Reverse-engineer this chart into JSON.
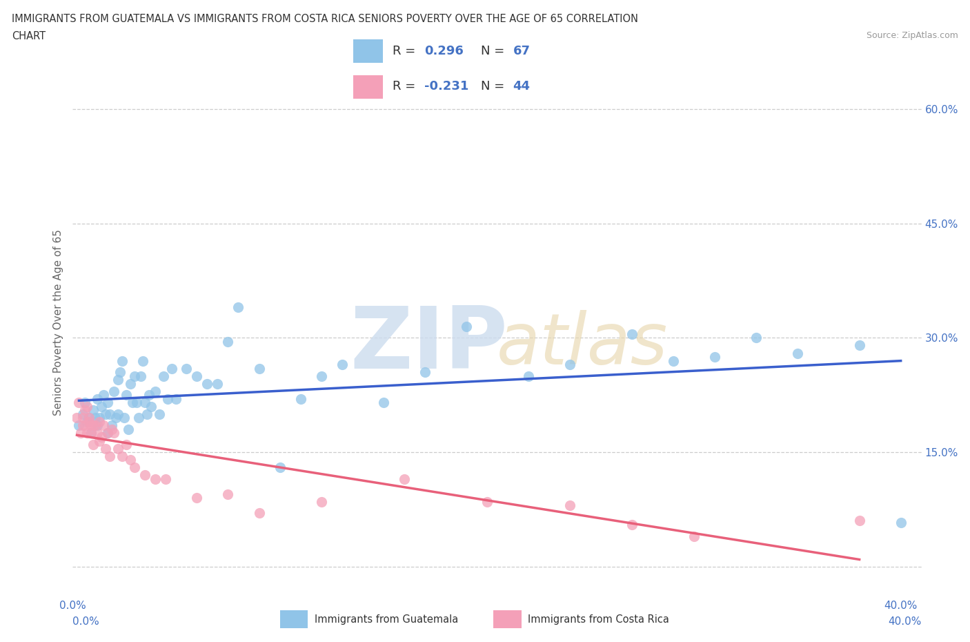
{
  "title_line1": "IMMIGRANTS FROM GUATEMALA VS IMMIGRANTS FROM COSTA RICA SENIORS POVERTY OVER THE AGE OF 65 CORRELATION",
  "title_line2": "CHART",
  "source": "Source: ZipAtlas.com",
  "ylabel": "Seniors Poverty Over the Age of 65",
  "xlim": [
    0.0,
    0.41
  ],
  "ylim": [
    -0.04,
    0.68
  ],
  "ytick_positions": [
    0.0,
    0.15,
    0.3,
    0.45,
    0.6
  ],
  "ytick_labels": [
    "",
    "15.0%",
    "30.0%",
    "45.0%",
    "60.0%"
  ],
  "xtick_positions": [
    0.0,
    0.05,
    0.1,
    0.15,
    0.2,
    0.25,
    0.3,
    0.35,
    0.4
  ],
  "xtick_labels": [
    "0.0%",
    "",
    "",
    "",
    "",
    "",
    "",
    "",
    "40.0%"
  ],
  "grid_color": "#cccccc",
  "bg_color": "#ffffff",
  "guatemala_dot_color": "#90c4e8",
  "costa_rica_dot_color": "#f4a0b8",
  "guatemala_line_color": "#3a5fcd",
  "costa_rica_line_color": "#e8607a",
  "R_guat": 0.296,
  "N_guat": 67,
  "R_costa": -0.231,
  "N_costa": 44,
  "guat_x": [
    0.003,
    0.005,
    0.006,
    0.007,
    0.008,
    0.009,
    0.01,
    0.011,
    0.012,
    0.012,
    0.013,
    0.014,
    0.015,
    0.016,
    0.017,
    0.017,
    0.018,
    0.019,
    0.02,
    0.021,
    0.022,
    0.022,
    0.023,
    0.024,
    0.025,
    0.026,
    0.027,
    0.028,
    0.029,
    0.03,
    0.031,
    0.032,
    0.033,
    0.034,
    0.035,
    0.036,
    0.037,
    0.038,
    0.04,
    0.042,
    0.044,
    0.046,
    0.048,
    0.05,
    0.055,
    0.06,
    0.065,
    0.07,
    0.075,
    0.08,
    0.09,
    0.1,
    0.11,
    0.12,
    0.13,
    0.15,
    0.17,
    0.19,
    0.22,
    0.24,
    0.27,
    0.29,
    0.31,
    0.33,
    0.35,
    0.38,
    0.4
  ],
  "guat_y": [
    0.185,
    0.2,
    0.215,
    0.19,
    0.195,
    0.175,
    0.205,
    0.195,
    0.185,
    0.22,
    0.195,
    0.21,
    0.225,
    0.2,
    0.175,
    0.215,
    0.2,
    0.185,
    0.23,
    0.195,
    0.2,
    0.245,
    0.255,
    0.27,
    0.195,
    0.225,
    0.18,
    0.24,
    0.215,
    0.25,
    0.215,
    0.195,
    0.25,
    0.27,
    0.215,
    0.2,
    0.225,
    0.21,
    0.23,
    0.2,
    0.25,
    0.22,
    0.26,
    0.22,
    0.26,
    0.25,
    0.24,
    0.24,
    0.295,
    0.34,
    0.26,
    0.13,
    0.22,
    0.25,
    0.265,
    0.215,
    0.255,
    0.315,
    0.25,
    0.265,
    0.305,
    0.27,
    0.275,
    0.3,
    0.28,
    0.29,
    0.058
  ],
  "costa_x": [
    0.002,
    0.003,
    0.004,
    0.005,
    0.005,
    0.006,
    0.006,
    0.007,
    0.007,
    0.008,
    0.008,
    0.009,
    0.009,
    0.01,
    0.01,
    0.011,
    0.012,
    0.013,
    0.013,
    0.014,
    0.015,
    0.016,
    0.017,
    0.018,
    0.019,
    0.02,
    0.022,
    0.024,
    0.026,
    0.028,
    0.03,
    0.035,
    0.04,
    0.045,
    0.06,
    0.075,
    0.09,
    0.12,
    0.16,
    0.2,
    0.24,
    0.27,
    0.3,
    0.38
  ],
  "costa_y": [
    0.195,
    0.215,
    0.175,
    0.195,
    0.185,
    0.205,
    0.185,
    0.21,
    0.175,
    0.19,
    0.195,
    0.185,
    0.175,
    0.16,
    0.185,
    0.185,
    0.175,
    0.165,
    0.19,
    0.17,
    0.185,
    0.155,
    0.175,
    0.145,
    0.18,
    0.175,
    0.155,
    0.145,
    0.16,
    0.14,
    0.13,
    0.12,
    0.115,
    0.115,
    0.09,
    0.095,
    0.07,
    0.085,
    0.115,
    0.085,
    0.08,
    0.055,
    0.04,
    0.06
  ],
  "legend_labels": [
    "Immigrants from Guatemala",
    "Immigrants from Costa Rica"
  ]
}
